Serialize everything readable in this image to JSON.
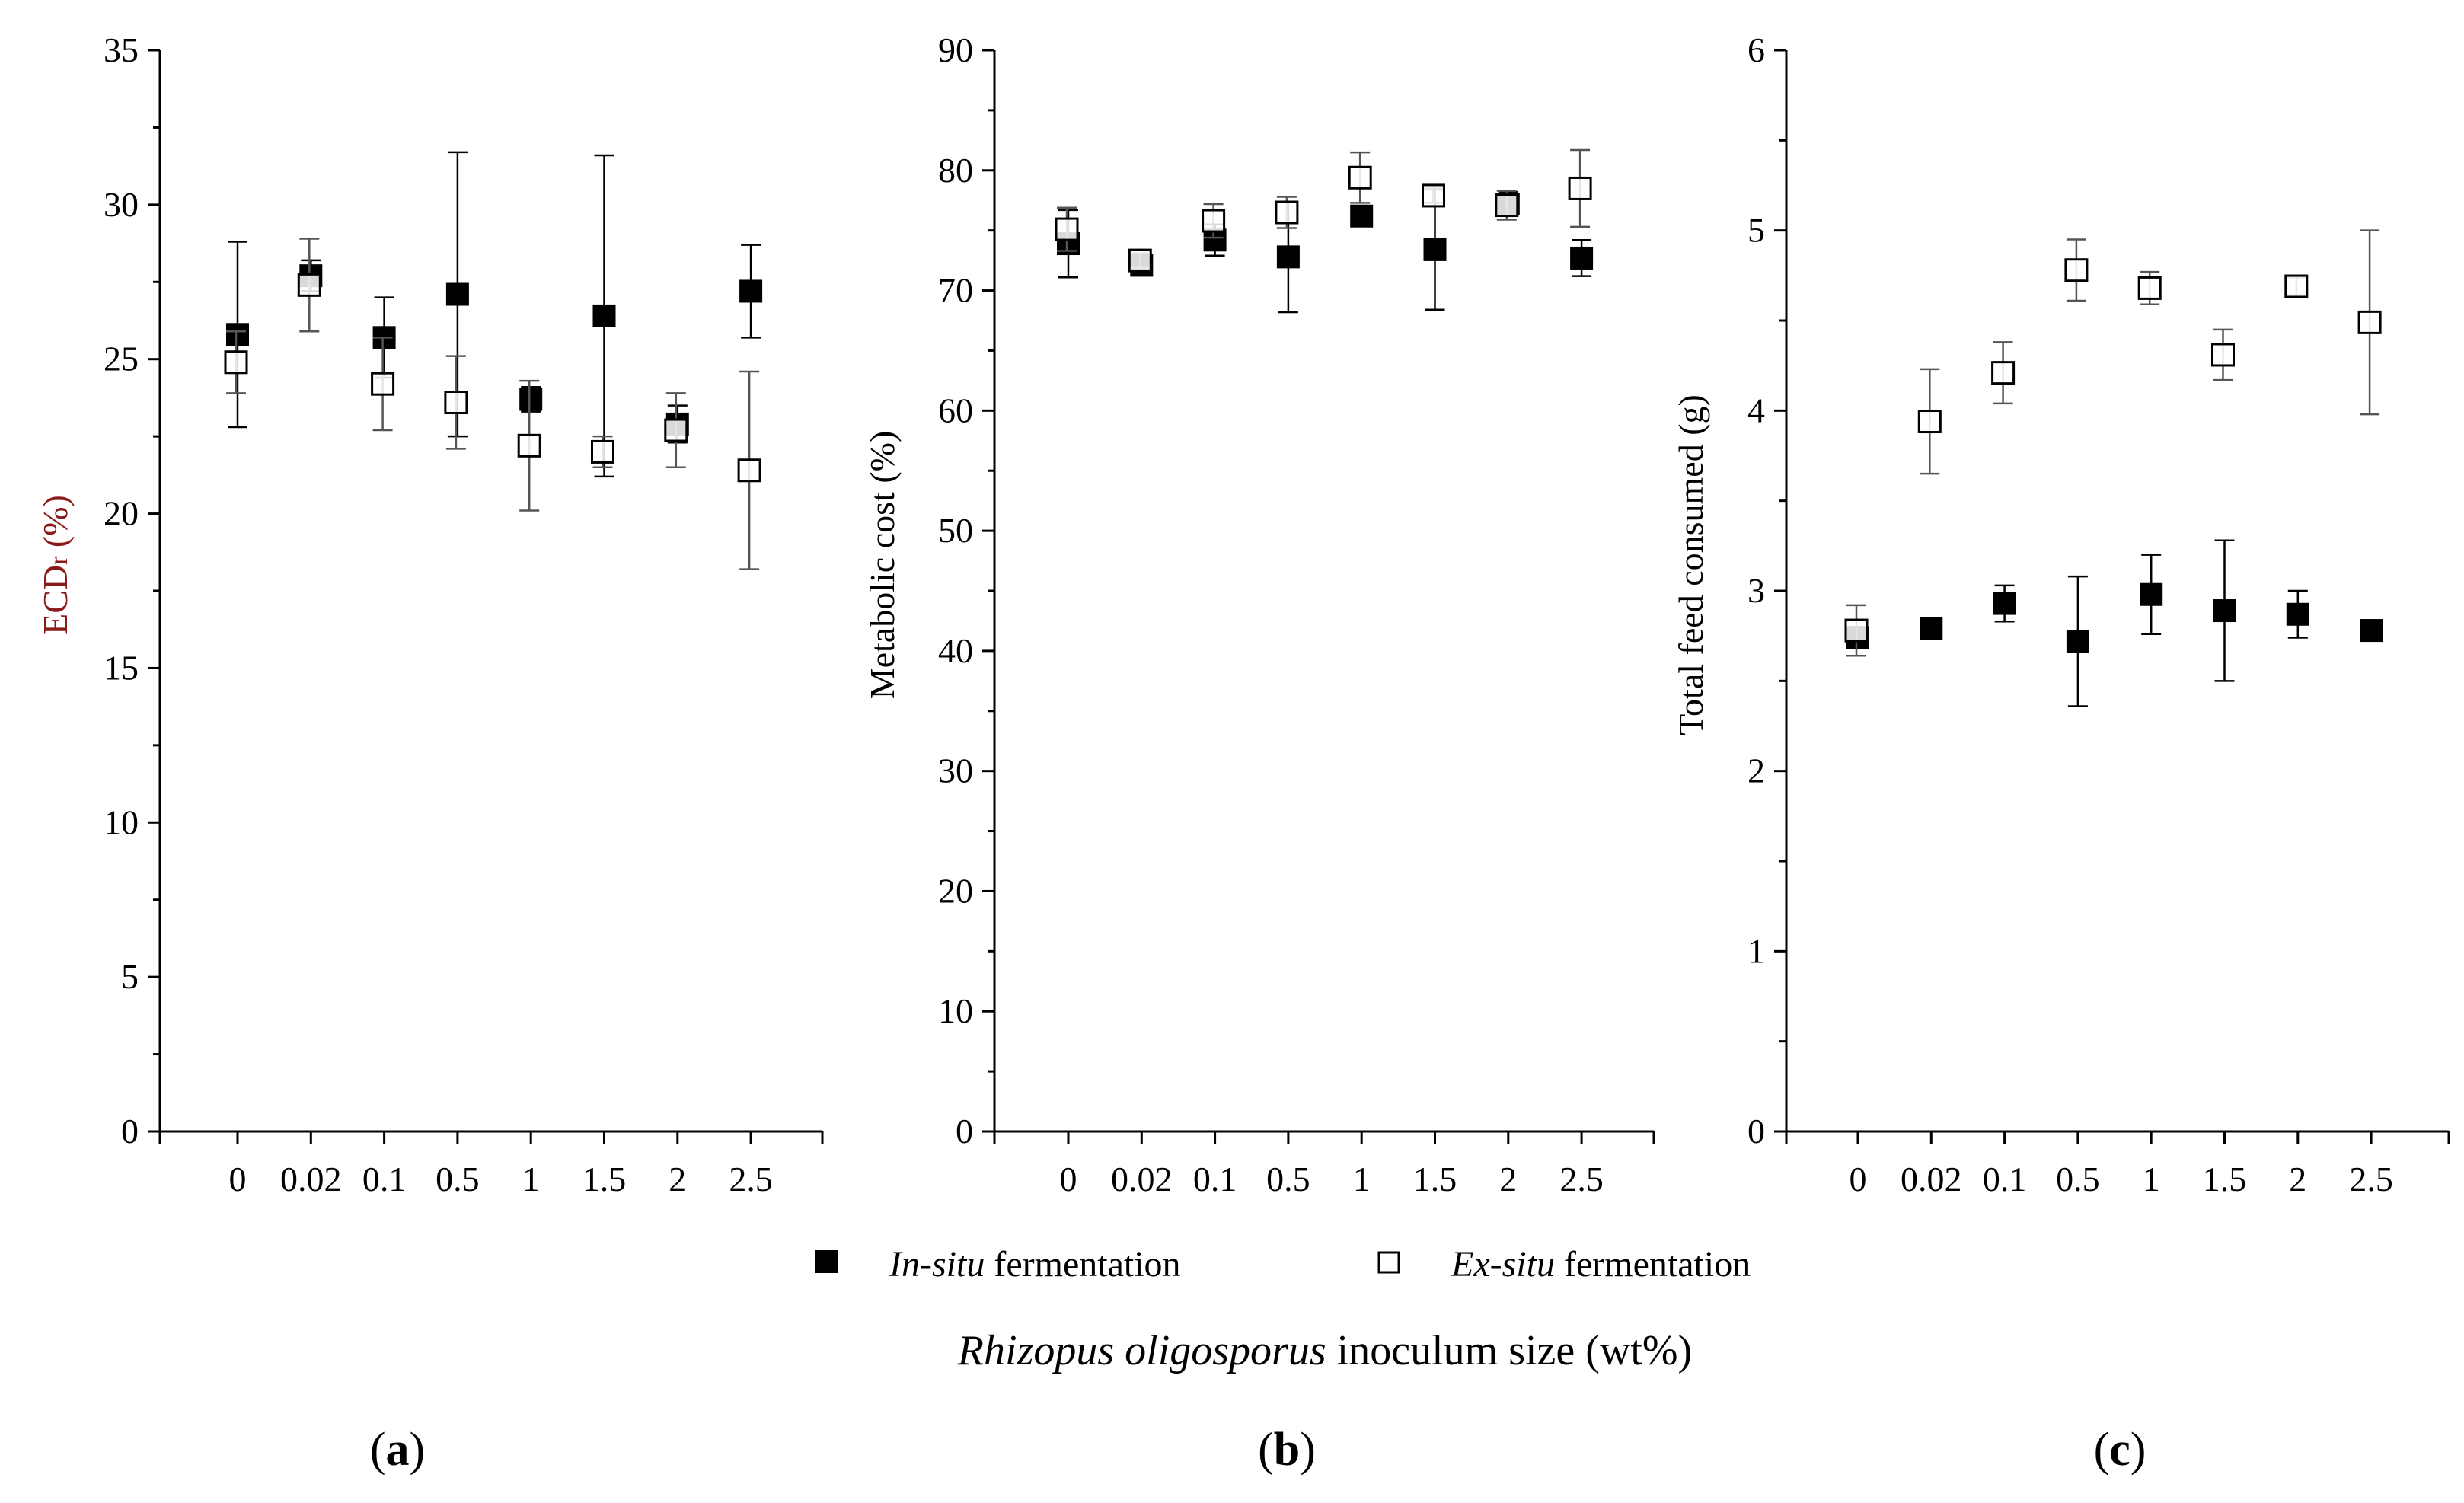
{
  "figure": {
    "legend": {
      "in_situ_italic": "In-situ",
      "in_situ_rest": " fermentation",
      "ex_situ_italic": "Ex-situ",
      "ex_situ_rest": " fermentation"
    },
    "xlabel_italic": "Rhizopus oligosporus",
    "xlabel_rest": " inoculum size   (wt%)"
  },
  "chart_data": [
    {
      "type": "scatter",
      "panel": "(a)",
      "panel_open": "(",
      "panel_letter": "a",
      "panel_close": ")",
      "ylabel": "ECDr (%)",
      "ylabel_main": "ECD",
      "ylabel_sub": "r",
      "ylabel_units": " (%)",
      "ylim": [
        0,
        35
      ],
      "yticks": [
        0,
        5,
        10,
        15,
        20,
        25,
        30,
        35
      ],
      "ytick_labels": [
        "0",
        "5",
        "10",
        "15",
        "20",
        "25",
        "30",
        "35"
      ],
      "categories": [
        "0",
        "0.02",
        "0.1",
        "0.5",
        "1",
        "1.5",
        "2",
        "2.5"
      ],
      "series": [
        {
          "name": "In-situ fermentation",
          "marker": "filled-square",
          "values": [
            25.8,
            27.7,
            25.7,
            27.1,
            23.7,
            26.4,
            22.9,
            27.2
          ],
          "errors": [
            3.0,
            0.5,
            1.3,
            4.6,
            0.4,
            5.2,
            0.6,
            1.5
          ]
        },
        {
          "name": "Ex-situ fermentation",
          "marker": "open-square",
          "values": [
            24.9,
            27.4,
            24.2,
            23.6,
            22.2,
            22.0,
            22.7,
            21.4
          ],
          "errors": [
            1.0,
            1.5,
            1.5,
            1.5,
            2.1,
            0.5,
            1.2,
            3.2
          ]
        }
      ]
    },
    {
      "type": "scatter",
      "panel": "(b)",
      "panel_open": "(",
      "panel_letter": "b",
      "panel_close": ")",
      "ylabel": "Metabolic cost (%)",
      "ylim": [
        0,
        90
      ],
      "yticks": [
        0,
        10,
        20,
        30,
        40,
        50,
        60,
        70,
        80,
        90
      ],
      "ytick_labels": [
        "0",
        "10",
        "20",
        "30",
        "40",
        "50",
        "60",
        "70",
        "80",
        "90"
      ],
      "categories": [
        "0",
        "0.02",
        "0.1",
        "0.5",
        "1",
        "1.5",
        "2",
        "2.5"
      ],
      "series": [
        {
          "name": "In-situ fermentation",
          "marker": "filled-square",
          "values": [
            73.9,
            72.1,
            74.2,
            72.8,
            76.2,
            73.4,
            77.2,
            72.7
          ],
          "errors": [
            2.8,
            0.6,
            1.3,
            4.6,
            0.6,
            5.0,
            1.0,
            1.5
          ]
        },
        {
          "name": "Ex-situ fermentation",
          "marker": "open-square",
          "values": [
            75.1,
            72.5,
            75.8,
            76.5,
            79.4,
            77.9,
            77.1,
            78.5
          ],
          "errors": [
            1.8,
            0.6,
            1.4,
            1.3,
            2.1,
            0.6,
            1.2,
            3.2
          ]
        }
      ]
    },
    {
      "type": "scatter",
      "panel": "(c)",
      "panel_open": "(",
      "panel_letter": "c",
      "panel_close": ")",
      "ylabel": "Total feed consumed (g)",
      "ylim": [
        0,
        6
      ],
      "yticks": [
        0,
        1,
        2,
        3,
        4,
        5,
        6
      ],
      "ytick_labels": [
        "0",
        "1",
        "2",
        "3",
        "4",
        "5",
        "6"
      ],
      "categories": [
        "0",
        "0.02",
        "0.1",
        "0.5",
        "1",
        "1.5",
        "2",
        "2.5"
      ],
      "series": [
        {
          "name": "In-situ fermentation",
          "marker": "filled-square",
          "values": [
            2.74,
            2.79,
            2.93,
            2.72,
            2.98,
            2.89,
            2.87,
            2.78
          ],
          "errors": [
            0.06,
            0.03,
            0.1,
            0.36,
            0.22,
            0.39,
            0.13,
            0.04
          ]
        },
        {
          "name": "Ex-situ fermentation",
          "marker": "open-square",
          "values": [
            2.78,
            3.94,
            4.21,
            4.78,
            4.68,
            4.31,
            4.69,
            4.49
          ],
          "errors": [
            0.14,
            0.29,
            0.17,
            0.17,
            0.09,
            0.14,
            0.05,
            0.51
          ]
        }
      ]
    }
  ]
}
